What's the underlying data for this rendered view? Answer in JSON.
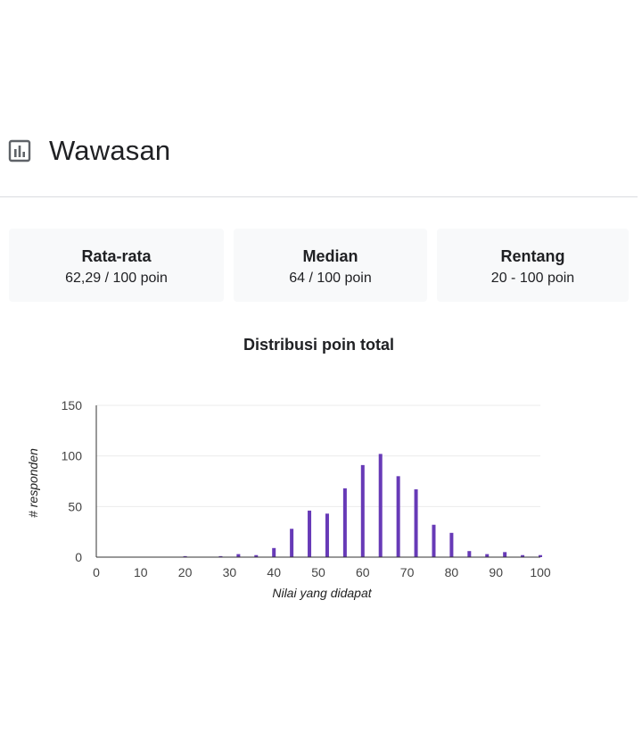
{
  "section": {
    "title": "Wawasan",
    "icon": "bar-chart-icon"
  },
  "stats": [
    {
      "label": "Rata-rata",
      "value": "62,29 / 100 poin"
    },
    {
      "label": "Median",
      "value": "64 / 100 poin"
    },
    {
      "label": "Rentang",
      "value": "20 - 100 poin"
    }
  ],
  "colors": {
    "bar": "#673ab7",
    "divider": "#dadce0",
    "card": "#f8f9fa",
    "icon": "#5f6368"
  },
  "chart_data": {
    "type": "bar",
    "title": "Distribusi poin total",
    "xlabel": "Nilai yang didapat",
    "ylabel": "# responden",
    "xlim": [
      0,
      100
    ],
    "ylim": [
      0,
      150
    ],
    "xticks": [
      "0",
      "10",
      "20",
      "30",
      "40",
      "50",
      "60",
      "70",
      "80",
      "90",
      "100"
    ],
    "yticks": [
      "0",
      "50",
      "100",
      "150"
    ],
    "grid": true,
    "legend": "none",
    "x": [
      20,
      28,
      32,
      36,
      40,
      44,
      48,
      52,
      56,
      60,
      64,
      68,
      72,
      76,
      80,
      84,
      88,
      92,
      96,
      100
    ],
    "values": [
      1,
      1,
      3,
      2,
      9,
      28,
      46,
      43,
      68,
      91,
      102,
      80,
      67,
      32,
      24,
      6,
      3,
      5,
      2,
      2
    ]
  }
}
